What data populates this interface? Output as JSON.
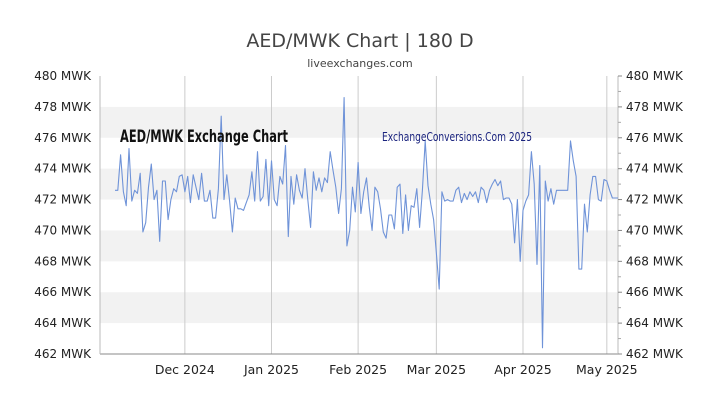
{
  "chart_data": {
    "type": "line",
    "title": "AED/MWK Chart | 180 D",
    "subtitle": "liveexchanges.com",
    "overlay_title": "AED/MWK Exchange Chart",
    "watermark": "ExchangeConversions.Com 2025",
    "xlabel": "",
    "ylabel": "",
    "ylim": [
      462,
      480
    ],
    "yticks": [
      462,
      464,
      466,
      468,
      470,
      472,
      474,
      476,
      478,
      480
    ],
    "ytick_labels": [
      "462 MWK",
      "464 MWK",
      "466 MWK",
      "468 MWK",
      "470 MWK",
      "472 MWK",
      "474 MWK",
      "476 MWK",
      "478 MWK",
      "480 MWK"
    ],
    "x_range": [
      0,
      180
    ],
    "xticks": [
      {
        "label": "Dec 2024",
        "day": 25
      },
      {
        "label": "Jan 2025",
        "day": 56
      },
      {
        "label": "Feb 2025",
        "day": 87
      },
      {
        "label": "Mar 2025",
        "day": 115
      },
      {
        "label": "Apr 2025",
        "day": 146
      },
      {
        "label": "May 2025",
        "day": 176
      }
    ],
    "grid": true,
    "legend": "none",
    "colors": {
      "line": "#6f93d8",
      "band": "#f2f2f2",
      "title": "#444444",
      "watermark": "#1a237e"
    },
    "series": [
      {
        "values": [
          472.6,
          472.6,
          474.9,
          472.5,
          471.6,
          475.3,
          471.9,
          472.6,
          472.4,
          473.7,
          469.9,
          470.5,
          472.8,
          474.3,
          472.0,
          472.6,
          469.3,
          473.2,
          473.2,
          470.7,
          472.0,
          472.7,
          472.5,
          473.5,
          473.6,
          472.5,
          473.5,
          471.8,
          473.6,
          472.8,
          472.0,
          473.7,
          471.9,
          471.9,
          472.6,
          470.8,
          470.8,
          472.7,
          477.4,
          472.0,
          473.6,
          471.9,
          469.9,
          472.1,
          471.4,
          471.4,
          471.3,
          471.8,
          472.3,
          473.8,
          471.9,
          475.1,
          471.9,
          472.2,
          474.6,
          471.6,
          474.5,
          472.0,
          471.6,
          473.5,
          473.0,
          475.5,
          469.6,
          473.5,
          471.7,
          473.6,
          472.6,
          472.1,
          474.0,
          472.0,
          470.2,
          473.8,
          472.6,
          473.4,
          472.5,
          473.4,
          473.1,
          475.1,
          473.9,
          472.8,
          471.1,
          472.7,
          478.6,
          469.0,
          470.0,
          472.8,
          471.2,
          474.4,
          471.1,
          472.5,
          473.4,
          471.5,
          470.0,
          472.8,
          472.5,
          471.4,
          469.9,
          469.5,
          471.0,
          471.0,
          470.1,
          472.8,
          473.0,
          469.8,
          472.3,
          470.0,
          471.6,
          471.5,
          472.7,
          470.2,
          472.6,
          475.8,
          472.9,
          471.7,
          470.7,
          468.5,
          466.2,
          472.5,
          471.9,
          472.0,
          471.9,
          471.9,
          472.6,
          472.8,
          471.8,
          472.4,
          472.0,
          472.5,
          472.2,
          472.5,
          471.8,
          472.8,
          472.6,
          471.8,
          472.6,
          473.0,
          473.3,
          472.9,
          473.2,
          472.0,
          472.1,
          472.1,
          471.7,
          469.2,
          472.0,
          468.0,
          471.3,
          471.9,
          472.3,
          475.1,
          473.0,
          467.8,
          474.2,
          462.4,
          473.2,
          471.9,
          472.7,
          471.7,
          472.6,
          472.6,
          472.6,
          472.6,
          472.6,
          475.8,
          474.5,
          473.5,
          467.5,
          467.5,
          471.7,
          469.9,
          472.3,
          473.5,
          473.5,
          472.0,
          471.9,
          473.3,
          473.2,
          472.6,
          472.1,
          472.1,
          472.1
        ]
      }
    ]
  }
}
